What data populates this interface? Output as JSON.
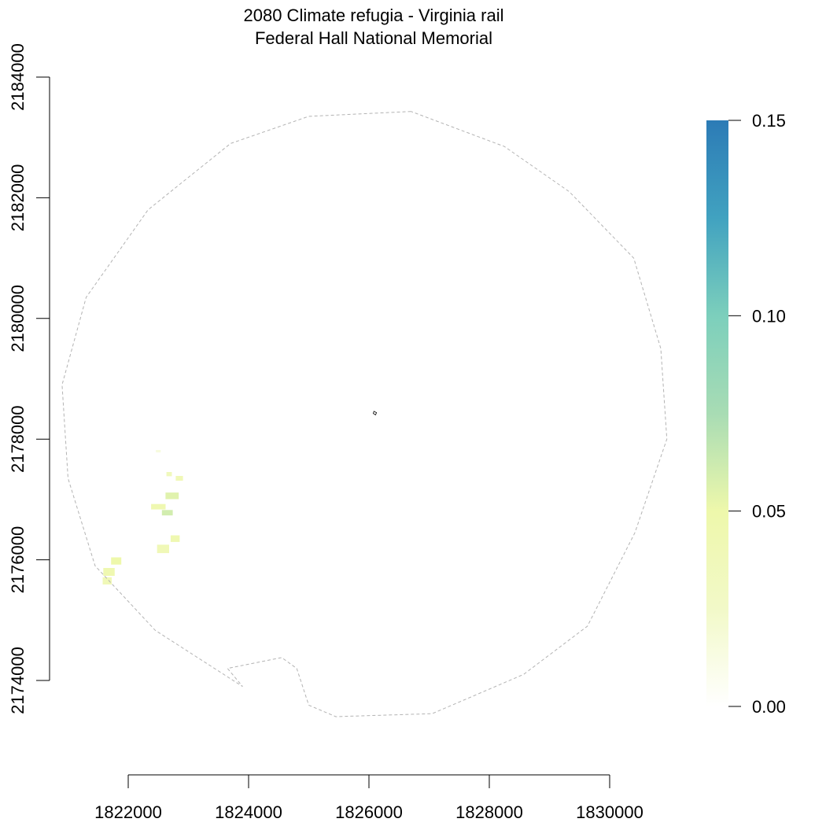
{
  "chart_data": {
    "type": "heatmap",
    "title": "2080 Climate refugia - Virginia rail",
    "subtitle": "Federal Hall National Memorial",
    "xlabel": "",
    "ylabel": "",
    "xlim": [
      1820000,
      1832000
    ],
    "ylim": [
      2172500,
      2184400
    ],
    "x_ticks": [
      1822000,
      1824000,
      1826000,
      1828000,
      1830000
    ],
    "x_tick_labels": [
      "1822000",
      "1824000",
      "1826000",
      "1828000",
      "1830000"
    ],
    "y_ticks": [
      2174000,
      2176000,
      2178000,
      2180000,
      2182000,
      2184000
    ],
    "y_tick_labels": [
      "2174000",
      "2176000",
      "2178000",
      "2180000",
      "2182000",
      "2184000"
    ],
    "legend": {
      "placement": "right",
      "range": [
        0,
        0.15
      ],
      "ticks": [
        0.0,
        0.05,
        0.1,
        0.15
      ],
      "tick_labels": [
        "0.00",
        "0.05",
        "0.10",
        "0.15"
      ],
      "colors": [
        "#ffffff",
        "#f2f9c8",
        "#eef8ab",
        "#a8dcb4",
        "#7ccfbc",
        "#41a2c0",
        "#2c7bb6"
      ]
    },
    "boundary_buffer": [
      [
        1826700,
        2183430
      ],
      [
        1825000,
        2183350
      ],
      [
        1823700,
        2182900
      ],
      [
        1822330,
        2181800
      ],
      [
        1821300,
        2180350
      ],
      [
        1820900,
        2178900
      ],
      [
        1821000,
        2177350
      ],
      [
        1821450,
        2175900
      ],
      [
        1822450,
        2174830
      ],
      [
        1823900,
        2173900
      ],
      [
        1823650,
        2174200
      ],
      [
        1824550,
        2174380
      ],
      [
        1824800,
        2174200
      ],
      [
        1825000,
        2173590
      ],
      [
        1825450,
        2173400
      ],
      [
        1827050,
        2173450
      ],
      [
        1828570,
        2174100
      ],
      [
        1829630,
        2174900
      ],
      [
        1830420,
        2176450
      ],
      [
        1830950,
        2178000
      ],
      [
        1830850,
        2179500
      ],
      [
        1830400,
        2181000
      ],
      [
        1829330,
        2182100
      ],
      [
        1828250,
        2182850
      ]
    ],
    "park_boundary": [
      [
        1826082,
        2178461
      ],
      [
        1826125,
        2178438
      ],
      [
        1826110,
        2178402
      ],
      [
        1826072,
        2178425
      ]
    ],
    "cells": [
      {
        "x": 1822850,
        "y": 2177350,
        "w": 120,
        "h": 80,
        "value": 0.04
      },
      {
        "x": 1822680,
        "y": 2177420,
        "w": 90,
        "h": 70,
        "value": 0.035
      },
      {
        "x": 1822730,
        "y": 2177060,
        "w": 220,
        "h": 110,
        "value": 0.055
      },
      {
        "x": 1822500,
        "y": 2176880,
        "w": 240,
        "h": 90,
        "value": 0.045
      },
      {
        "x": 1822650,
        "y": 2176780,
        "w": 180,
        "h": 90,
        "value": 0.06
      },
      {
        "x": 1822780,
        "y": 2176350,
        "w": 150,
        "h": 110,
        "value": 0.045
      },
      {
        "x": 1822580,
        "y": 2176180,
        "w": 200,
        "h": 140,
        "value": 0.04
      },
      {
        "x": 1821800,
        "y": 2175980,
        "w": 170,
        "h": 120,
        "value": 0.05
      },
      {
        "x": 1821680,
        "y": 2175800,
        "w": 190,
        "h": 130,
        "value": 0.045
      },
      {
        "x": 1821650,
        "y": 2175650,
        "w": 150,
        "h": 120,
        "value": 0.04
      },
      {
        "x": 1822500,
        "y": 2177800,
        "w": 80,
        "h": 40,
        "value": 0.015
      }
    ]
  }
}
